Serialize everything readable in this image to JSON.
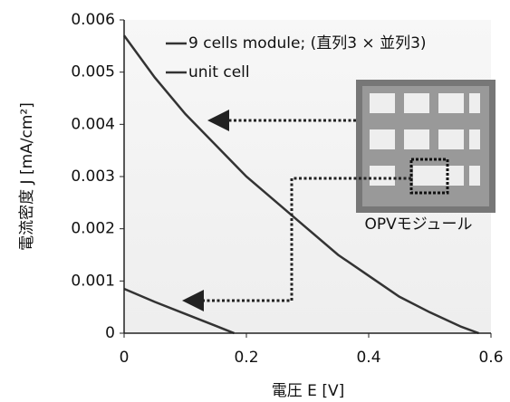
{
  "chart_data": {
    "type": "line",
    "xlabel": "電圧 E [V]",
    "ylabel": "電流密度 J [mA/cm²]",
    "annotation": "OPVモジュール",
    "xlim": [
      0,
      0.6
    ],
    "xticks": [
      0,
      0.2,
      0.4,
      0.6
    ],
    "ylim": [
      0,
      0.006
    ],
    "yticks": [
      0,
      0.001,
      0.002,
      0.003,
      0.004,
      0.005,
      0.006
    ],
    "series": [
      {
        "name": "9 cells module; (直列3 × 並列3)",
        "color": "#333333",
        "x": [
          0,
          0.05,
          0.1,
          0.15,
          0.2,
          0.25,
          0.3,
          0.35,
          0.4,
          0.45,
          0.5,
          0.55,
          0.58
        ],
        "values": [
          0.0057,
          0.0049,
          0.0042,
          0.0036,
          0.003,
          0.0025,
          0.002,
          0.0015,
          0.0011,
          0.0007,
          0.0004,
          0.00013,
          0
        ]
      },
      {
        "name": "unit cell",
        "color": "#333333",
        "x": [
          0,
          0.05,
          0.1,
          0.15,
          0.18
        ],
        "values": [
          0.00085,
          0.0006,
          0.00037,
          0.00014,
          0
        ]
      }
    ]
  }
}
